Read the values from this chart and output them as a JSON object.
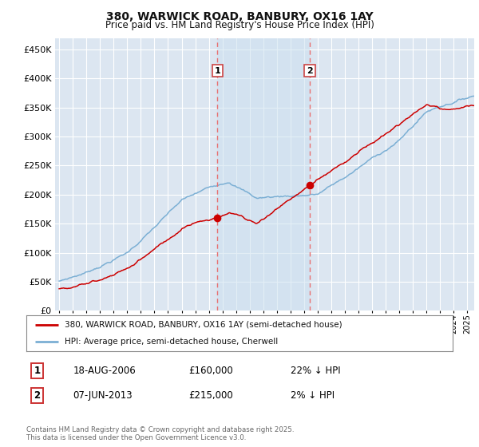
{
  "title": "380, WARWICK ROAD, BANBURY, OX16 1AY",
  "subtitle": "Price paid vs. HM Land Registry's House Price Index (HPI)",
  "background_color": "#ffffff",
  "plot_bg_color": "#dce6f1",
  "grid_color": "#ffffff",
  "red_color": "#cc0000",
  "blue_color": "#7bafd4",
  "dashed_color": "#e87070",
  "span_color": "#cce0f0",
  "sale1_date": "18-AUG-2006",
  "sale1_price": 160000,
  "sale1_pct": "22% ↓ HPI",
  "sale2_date": "07-JUN-2013",
  "sale2_price": 215000,
  "sale2_pct": "2% ↓ HPI",
  "legend_label1": "380, WARWICK ROAD, BANBURY, OX16 1AY (semi-detached house)",
  "legend_label2": "HPI: Average price, semi-detached house, Cherwell",
  "footer": "Contains HM Land Registry data © Crown copyright and database right 2025.\nThis data is licensed under the Open Government Licence v3.0.",
  "ylim_min": 0,
  "ylim_max": 470000,
  "yticks": [
    0,
    50000,
    100000,
    150000,
    200000,
    250000,
    300000,
    350000,
    400000,
    450000
  ],
  "sale1_x": 2006.62,
  "sale2_x": 2013.42,
  "sale1_y": 160000,
  "sale2_y": 215000,
  "xmin": 1994.7,
  "xmax": 2025.5
}
